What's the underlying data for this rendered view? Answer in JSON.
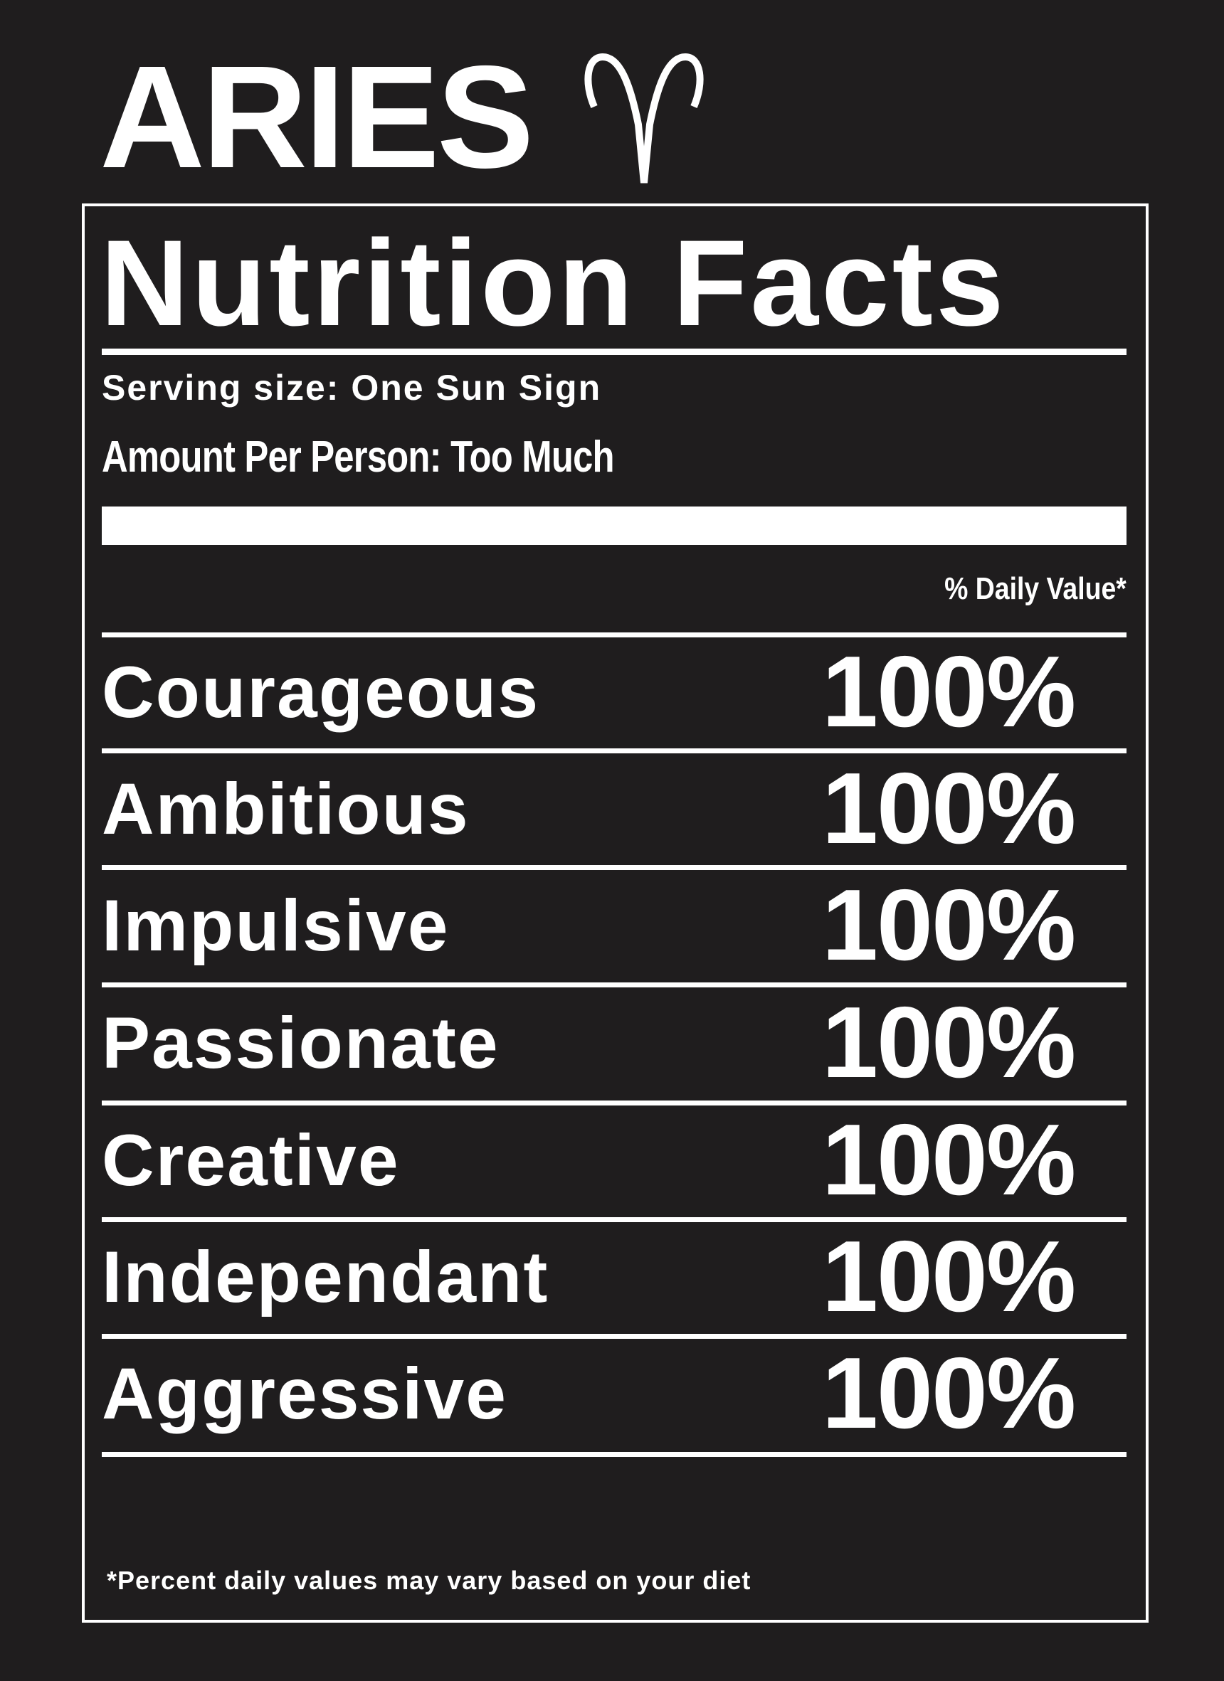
{
  "header": {
    "title": "ARIES",
    "symbol_icon": "aries-symbol-icon"
  },
  "label": {
    "title": "Nutrition Facts",
    "serving_size": "Serving size: One Sun Sign",
    "amount": "Amount Per Person: Too Much",
    "daily_value_header": "% Daily Value*",
    "rows": [
      {
        "name": "Courageous",
        "value": "100%"
      },
      {
        "name": "Ambitious",
        "value": "100%"
      },
      {
        "name": "Impulsive",
        "value": "100%"
      },
      {
        "name": "Passionate",
        "value": "100%"
      },
      {
        "name": "Creative",
        "value": "100%"
      },
      {
        "name": "Independant",
        "value": "100%"
      },
      {
        "name": "Aggressive",
        "value": "100%"
      }
    ],
    "footnote": "*Percent daily values may vary based on your diet"
  },
  "colors": {
    "background": "#1f1d1e",
    "foreground": "#ffffff"
  }
}
